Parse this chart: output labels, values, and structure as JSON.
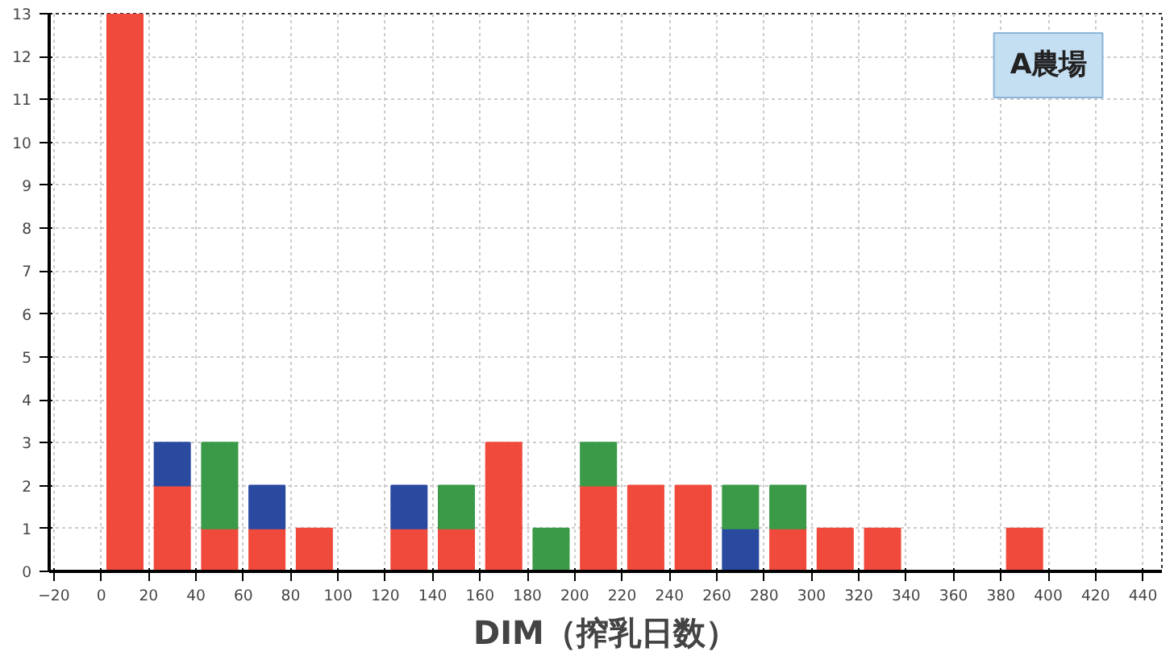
{
  "chart_data": {
    "type": "bar",
    "stacked": true,
    "xlabel": "DIM（搾乳日数）",
    "annotations": [
      "A農場"
    ],
    "x": [
      10,
      30,
      50,
      70,
      90,
      130,
      150,
      170,
      190,
      210,
      230,
      250,
      270,
      290,
      310,
      330,
      390
    ],
    "series": [
      {
        "color": "#f04a3c",
        "values": [
          13,
          2,
          1,
          1,
          1,
          1,
          1,
          3,
          null,
          2,
          2,
          2,
          null,
          1,
          1,
          1,
          1
        ]
      },
      {
        "color": "#2a4aa0",
        "values": [
          null,
          1,
          null,
          1,
          null,
          1,
          null,
          null,
          null,
          null,
          null,
          null,
          1,
          null,
          null,
          null,
          null
        ]
      },
      {
        "color": "#3a9a48",
        "values": [
          null,
          null,
          2,
          null,
          null,
          null,
          1,
          null,
          1,
          1,
          null,
          null,
          1,
          1,
          null,
          null,
          null
        ]
      }
    ],
    "xlim": [
      -22,
      448
    ],
    "ylim": [
      0,
      13
    ],
    "xticks": [
      -20,
      0,
      20,
      40,
      60,
      80,
      100,
      120,
      140,
      160,
      180,
      200,
      220,
      240,
      260,
      280,
      300,
      320,
      340,
      360,
      380,
      400,
      420,
      440
    ],
    "yticks": [
      0,
      1,
      2,
      3,
      4,
      5,
      6,
      7,
      8,
      9,
      10,
      11,
      12,
      13
    ],
    "grid": true
  }
}
